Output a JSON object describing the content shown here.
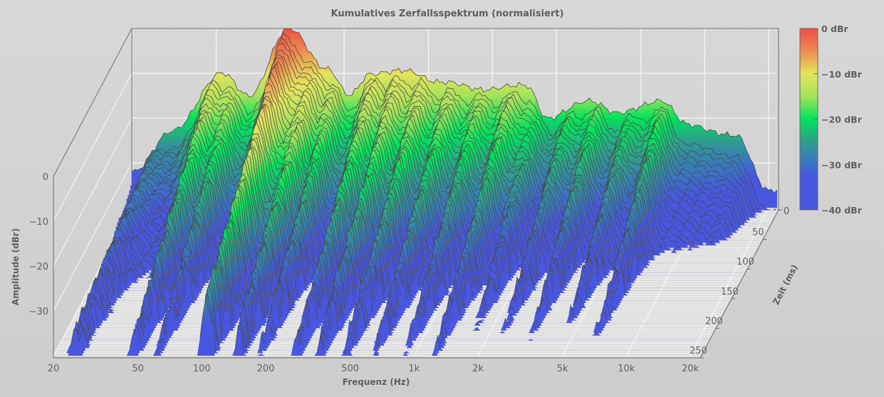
{
  "chart_data": {
    "type": "waterfall-3d",
    "title": "Kumulatives Zerfallsspektrum (normalisiert)",
    "xlabel": "Frequenz (Hz)",
    "ylabel": "Amplitude (dBr)",
    "zlabel": "Zeit (ms)",
    "x_scale": "log",
    "xlim": [
      20,
      20000
    ],
    "ylim": [
      -40,
      0
    ],
    "zlim": [
      0,
      250
    ],
    "x_ticks": [
      {
        "v": 20,
        "label": "20"
      },
      {
        "v": 50,
        "label": "50"
      },
      {
        "v": 100,
        "label": "100"
      },
      {
        "v": 200,
        "label": "200"
      },
      {
        "v": 500,
        "label": "500"
      },
      {
        "v": 1000,
        "label": "1k"
      },
      {
        "v": 2000,
        "label": "2k"
      },
      {
        "v": 5000,
        "label": "5k"
      },
      {
        "v": 10000,
        "label": "10k"
      },
      {
        "v": 20000,
        "label": "20k"
      }
    ],
    "y_ticks": [
      {
        "v": 0,
        "label": "0"
      },
      {
        "v": -10,
        "label": "−10"
      },
      {
        "v": -20,
        "label": "−20"
      },
      {
        "v": -30,
        "label": "−30"
      }
    ],
    "z_ticks": [
      {
        "v": 0,
        "label": "0"
      },
      {
        "v": 50,
        "label": "50"
      },
      {
        "v": 100,
        "label": "100"
      },
      {
        "v": 150,
        "label": "150"
      },
      {
        "v": 200,
        "label": "200"
      },
      {
        "v": 250,
        "label": "250"
      }
    ],
    "colorbar": {
      "ticks": [
        {
          "v": 0,
          "label": "0 dBr"
        },
        {
          "v": -10,
          "label": "−10 dBr"
        },
        {
          "v": -20,
          "label": "−20 dBr"
        },
        {
          "v": -30,
          "label": "−30 dBr"
        },
        {
          "v": -40,
          "label": "−40 dBr"
        }
      ],
      "stops": [
        {
          "db": 0,
          "color": "#ec4f47"
        },
        {
          "db": -5,
          "color": "#ef8c4f"
        },
        {
          "db": -10,
          "color": "#e6e35e"
        },
        {
          "db": -15,
          "color": "#a6e25a"
        },
        {
          "db": -20,
          "color": "#00e35a"
        },
        {
          "db": -25,
          "color": "#2e9e8c"
        },
        {
          "db": -30,
          "color": "#3a72c4"
        },
        {
          "db": -33,
          "color": "#4856e0"
        },
        {
          "db": -40,
          "color": "#4856e0"
        }
      ]
    },
    "slice_count": 60,
    "initial_spectrum_db": [
      [
        20,
        -32
      ],
      [
        31,
        -23
      ],
      [
        53,
        -10
      ],
      [
        71,
        -15
      ],
      [
        110,
        0
      ],
      [
        167,
        -9
      ],
      [
        211,
        -15
      ],
      [
        266,
        -10
      ],
      [
        392,
        -9.5
      ],
      [
        575,
        -12
      ],
      [
        908,
        -13.5
      ],
      [
        1450,
        -12.7
      ],
      [
        1820,
        -20
      ],
      [
        2900,
        -16
      ],
      [
        3900,
        -19
      ],
      [
        6200,
        -16
      ],
      [
        8300,
        -21.5
      ],
      [
        14000,
        -24
      ],
      [
        20000,
        -36
      ]
    ],
    "decay_ridges_hz": [
      25,
      48,
      62,
      105,
      150,
      190,
      280,
      360,
      480,
      650,
      900,
      1250,
      1700,
      2300,
      3200,
      4500,
      6500
    ]
  }
}
